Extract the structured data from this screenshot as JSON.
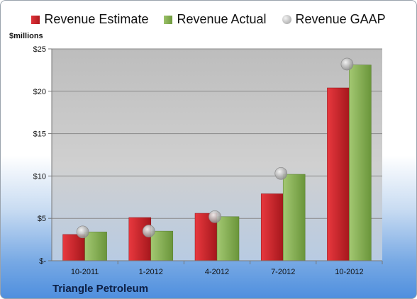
{
  "legend": {
    "estimate": "Revenue Estimate",
    "actual": "Revenue Actual",
    "gaap": "Revenue GAAP"
  },
  "unit_label": "$millions",
  "company": "Triangle Petroleum",
  "colors": {
    "estimate": "#c8262b",
    "actual": "#8cb55a",
    "gaap": "#b5b5b5",
    "plot_bg": "#c4c4c4"
  },
  "chart_data": {
    "type": "bar",
    "categories": [
      "10-2011",
      "1-2012",
      "4-2012",
      "7-2012",
      "10-2012"
    ],
    "series": [
      {
        "name": "Revenue Estimate",
        "values": [
          3.1,
          5.1,
          5.6,
          7.9,
          20.4
        ]
      },
      {
        "name": "Revenue Actual",
        "values": [
          3.4,
          3.5,
          5.2,
          10.2,
          23.1
        ]
      },
      {
        "name": "Revenue GAAP",
        "values": [
          3.4,
          3.5,
          5.2,
          10.3,
          23.2
        ],
        "style": "marker"
      }
    ],
    "ylim": [
      0,
      25
    ],
    "yticks": [
      0,
      5,
      10,
      15,
      20,
      25
    ],
    "ytick_labels": [
      "$-",
      "$5",
      "$10",
      "$15",
      "$20",
      "$25"
    ],
    "ylabel": "$millions",
    "grid": true,
    "legend_position": "top"
  }
}
